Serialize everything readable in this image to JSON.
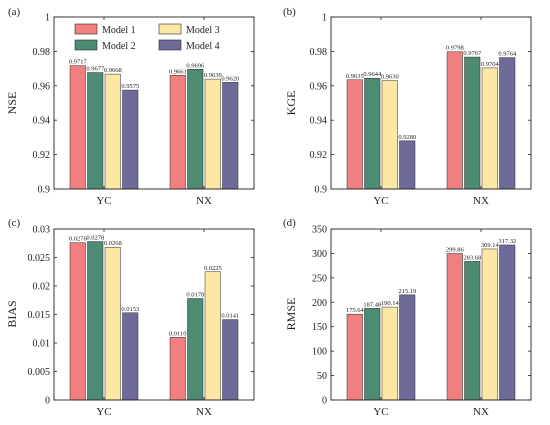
{
  "colors": {
    "series": [
      "#F08080",
      "#4E8B73",
      "#FCE8A4",
      "#6E6A9A"
    ],
    "edge": "#2a2a2a",
    "axis": "#222222"
  },
  "legend": {
    "position": "top-left-of-first-panel",
    "entries": [
      "Model 1",
      "Model 2",
      "Model 3",
      "Model 4"
    ]
  },
  "chart_data": [
    {
      "type": "bar",
      "panel_label": "(a)",
      "ylabel": "NSE",
      "categories": [
        "YC",
        "NX"
      ],
      "ylim": [
        0.9,
        1
      ],
      "yticks": [
        0.9,
        0.92,
        0.94,
        0.96,
        0.98,
        1
      ],
      "ytick_labels": [
        "0.9",
        "0.92",
        "0.94",
        "0.96",
        "0.98",
        "1"
      ],
      "series": [
        {
          "name": "Model 1",
          "values": [
            0.9717,
            0.9661
          ],
          "labels": [
            "0.9717",
            "0.9661"
          ]
        },
        {
          "name": "Model 2",
          "values": [
            0.9677,
            0.9696
          ],
          "labels": [
            "0.9677",
            "0.9696"
          ]
        },
        {
          "name": "Model 3",
          "values": [
            0.9668,
            0.9639
          ],
          "labels": [
            "0.9668",
            "0.9639"
          ]
        },
        {
          "name": "Model 4",
          "values": [
            0.9575,
            0.962
          ],
          "labels": [
            "0.9575",
            "0.9620"
          ]
        }
      ]
    },
    {
      "type": "bar",
      "panel_label": "(b)",
      "ylabel": "KGE",
      "categories": [
        "YC",
        "NX"
      ],
      "ylim": [
        0.9,
        1
      ],
      "yticks": [
        0.9,
        0.92,
        0.94,
        0.96,
        0.98,
        1
      ],
      "ytick_labels": [
        "0.9",
        "0.92",
        "0.94",
        "0.96",
        "0.98",
        "1"
      ],
      "series": [
        {
          "name": "Model 1",
          "values": [
            0.9635,
            0.9798
          ],
          "labels": [
            "0.9635",
            "0.9798"
          ]
        },
        {
          "name": "Model 2",
          "values": [
            0.9644,
            0.9767
          ],
          "labels": [
            "0.9644",
            "0.9767"
          ]
        },
        {
          "name": "Model 3",
          "values": [
            0.963,
            0.9704
          ],
          "labels": [
            "0.9630",
            "0.9704"
          ]
        },
        {
          "name": "Model 4",
          "values": [
            0.928,
            0.9764
          ],
          "labels": [
            "0.9280",
            "0.9764"
          ]
        }
      ]
    },
    {
      "type": "bar",
      "panel_label": "(c)",
      "ylabel": "BIAS",
      "categories": [
        "YC",
        "NX"
      ],
      "ylim": [
        0,
        0.03
      ],
      "yticks": [
        0,
        0.005,
        0.01,
        0.015,
        0.02,
        0.025,
        0.03
      ],
      "ytick_labels": [
        "0",
        "0.005",
        "0.01",
        "0.015",
        "0.02",
        "0.025",
        "0.03"
      ],
      "series": [
        {
          "name": "Model 1",
          "values": [
            0.0276,
            0.011
          ],
          "labels": [
            "0.0276",
            "0.0110"
          ]
        },
        {
          "name": "Model 2",
          "values": [
            0.0278,
            0.0178
          ],
          "labels": [
            "0.0278",
            "0.0178"
          ]
        },
        {
          "name": "Model 3",
          "values": [
            0.0268,
            0.0225
          ],
          "labels": [
            "0.0268",
            "0.0225"
          ]
        },
        {
          "name": "Model 4",
          "values": [
            0.0153,
            0.0141
          ],
          "labels": [
            "0.0153",
            "0.0141"
          ]
        }
      ]
    },
    {
      "type": "bar",
      "panel_label": "(d)",
      "ylabel": "RMSE",
      "categories": [
        "YC",
        "NX"
      ],
      "ylim": [
        0,
        350
      ],
      "yticks": [
        0,
        50,
        100,
        150,
        200,
        250,
        300,
        350
      ],
      "ytick_labels": [
        "0",
        "50",
        "100",
        "150",
        "200",
        "250",
        "300",
        "350"
      ],
      "series": [
        {
          "name": "Model 1",
          "values": [
            175.64,
            299.86
          ],
          "labels": [
            "175.64",
            "299.86"
          ]
        },
        {
          "name": "Model 2",
          "values": [
            187.48,
            283.68
          ],
          "labels": [
            "187.48",
            "283.68"
          ]
        },
        {
          "name": "Model 3",
          "values": [
            190.14,
            309.14
          ],
          "labels": [
            "190.14",
            "309.14"
          ]
        },
        {
          "name": "Model 4",
          "values": [
            215.19,
            317.32
          ],
          "labels": [
            "215.19",
            "317.32"
          ]
        }
      ]
    }
  ]
}
